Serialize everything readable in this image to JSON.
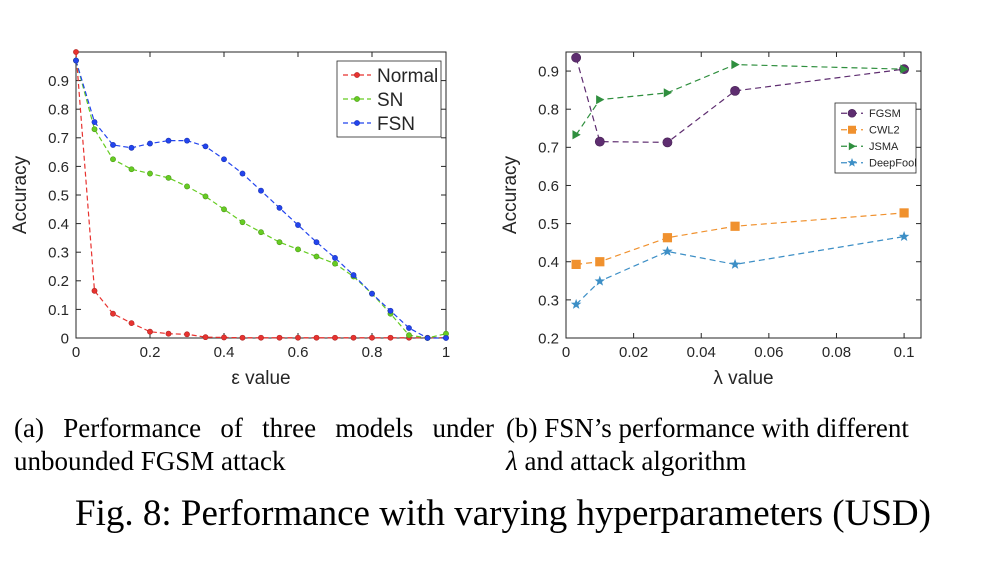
{
  "chart_data": [
    {
      "type": "line",
      "xlabel": "ε value",
      "ylabel": "Accuracy",
      "xlim": [
        0,
        1
      ],
      "ylim": [
        0,
        1
      ],
      "xticks": [
        "0",
        "0.2",
        "0.4",
        "0.6",
        "0.8",
        "1"
      ],
      "yticks": [
        "0",
        "0.1",
        "0.2",
        "0.3",
        "0.4",
        "0.5",
        "0.6",
        "0.7",
        "0.8",
        "0.9"
      ],
      "grid": false,
      "legend_position": "top-right",
      "x": [
        0,
        0.05,
        0.1,
        0.15,
        0.2,
        0.25,
        0.3,
        0.35,
        0.4,
        0.45,
        0.5,
        0.55,
        0.6,
        0.65,
        0.7,
        0.75,
        0.8,
        0.85,
        0.9,
        0.95,
        1
      ],
      "series": [
        {
          "name": "Normal",
          "color": "#e8322f",
          "marker": "circle",
          "values": [
            1.0,
            0.165,
            0.085,
            0.052,
            0.022,
            0.015,
            0.013,
            0.003,
            0.002,
            0.001,
            0.001,
            0.001,
            0.001,
            0.001,
            0.001,
            0.001,
            0.001,
            0.001,
            0.001,
            0.001,
            0.001
          ]
        },
        {
          "name": "SN",
          "color": "#66cc22",
          "marker": "circle",
          "values": [
            0.97,
            0.73,
            0.625,
            0.59,
            0.575,
            0.56,
            0.53,
            0.495,
            0.45,
            0.405,
            0.37,
            0.335,
            0.31,
            0.285,
            0.26,
            0.215,
            0.155,
            0.085,
            0.01,
            0.0,
            0.015
          ]
        },
        {
          "name": "FSN",
          "color": "#2244ee",
          "marker": "circle",
          "values": [
            0.97,
            0.755,
            0.675,
            0.665,
            0.68,
            0.69,
            0.69,
            0.67,
            0.625,
            0.575,
            0.515,
            0.455,
            0.395,
            0.335,
            0.28,
            0.22,
            0.155,
            0.095,
            0.035,
            0.0,
            0.0
          ]
        }
      ]
    },
    {
      "type": "line",
      "xlabel": "λ value",
      "ylabel": "Accuracy",
      "xlim": [
        0,
        0.105
      ],
      "ylim": [
        0.2,
        0.95
      ],
      "xticks": [
        "0",
        "0.02",
        "0.04",
        "0.06",
        "0.08",
        "0.1"
      ],
      "yticks": [
        "0.2",
        "0.3",
        "0.4",
        "0.5",
        "0.6",
        "0.7",
        "0.8",
        "0.9"
      ],
      "grid": false,
      "legend_position": "right",
      "x": [
        0.003,
        0.01,
        0.03,
        0.05,
        0.1
      ],
      "series": [
        {
          "name": "FGSM",
          "color": "#5e2d70",
          "marker": "circle",
          "values": [
            0.935,
            0.715,
            0.713,
            0.848,
            0.905
          ]
        },
        {
          "name": "CWL2",
          "color": "#f0912e",
          "marker": "square",
          "values": [
            0.393,
            0.4,
            0.463,
            0.493,
            0.528
          ]
        },
        {
          "name": "JSMA",
          "color": "#2f8f3e",
          "marker": "triangle",
          "values": [
            0.733,
            0.825,
            0.843,
            0.917,
            0.905
          ]
        },
        {
          "name": "DeepFool",
          "color": "#3d8fc6",
          "marker": "star",
          "values": [
            0.288,
            0.349,
            0.427,
            0.393,
            0.466
          ]
        }
      ]
    }
  ],
  "captions": {
    "a": "(a) Performance of three models under unbounded FGSM attack",
    "b_prefix": "(b) FSN’s performance with different",
    "b_lambda": "λ",
    "b_suffix": " and attack algorithm",
    "figure": "Fig. 8: Performance with varying hyperparameters (USD)"
  }
}
